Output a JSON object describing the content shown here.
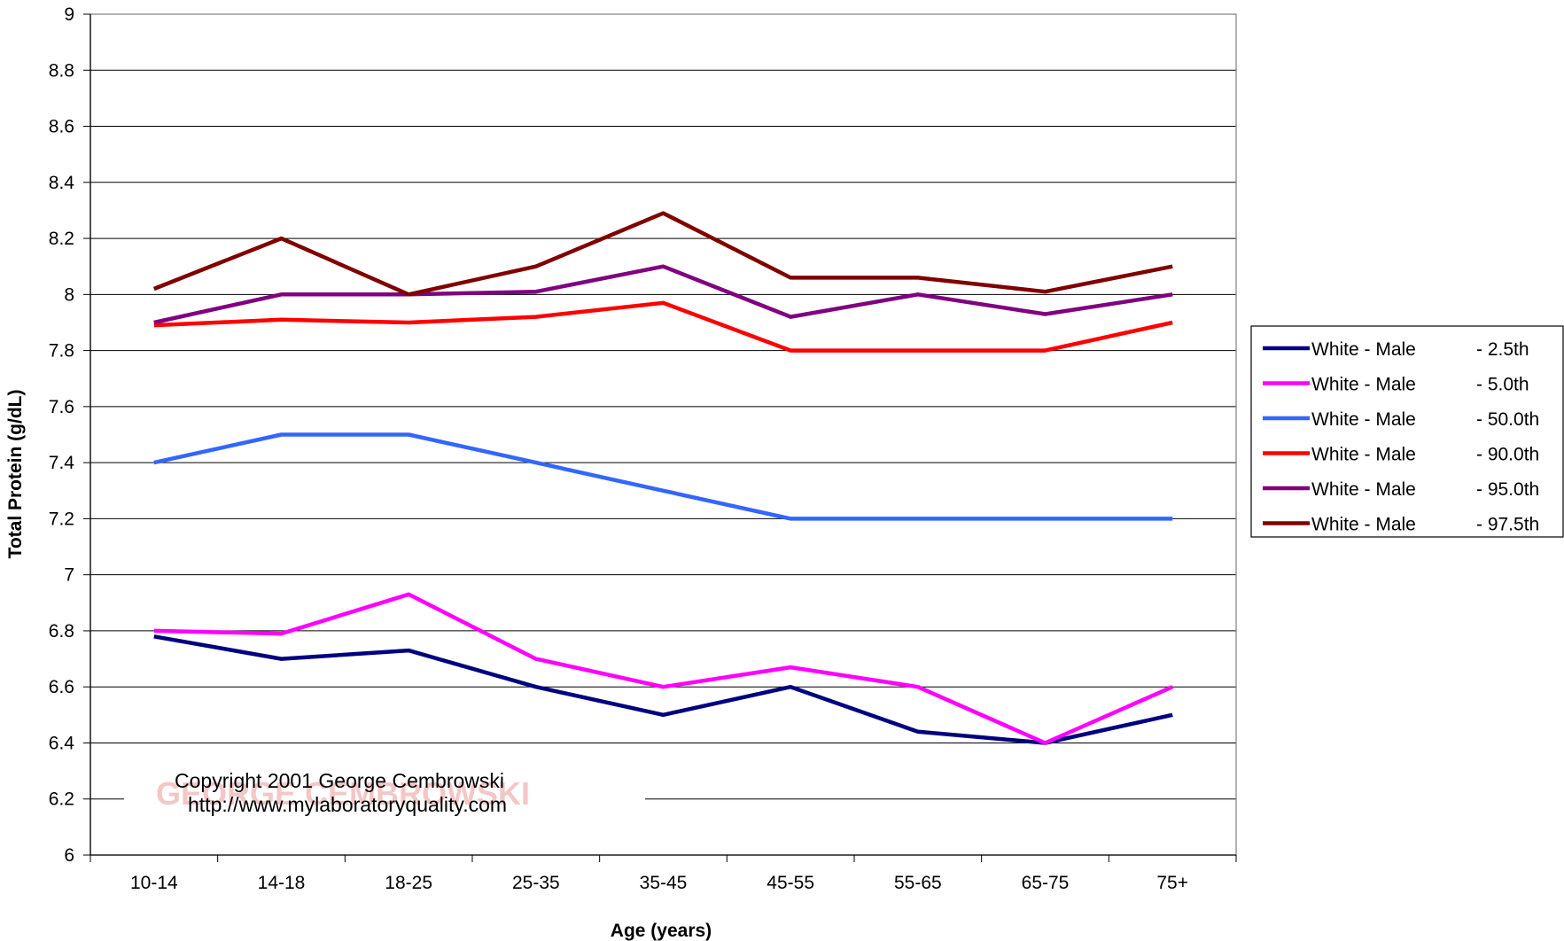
{
  "chart_data": {
    "type": "line",
    "xlabel": "Age (years)",
    "ylabel": "Total Protein (g/dL)",
    "ylim": [
      6,
      9
    ],
    "y_ticks": [
      "6",
      "6.2",
      "6.4",
      "6.6",
      "6.8",
      "7",
      "7.2",
      "7.4",
      "7.6",
      "7.8",
      "8",
      "8.2",
      "8.4",
      "8.6",
      "8.8",
      "9"
    ],
    "categories": [
      "10-14",
      "14-18",
      "18-25",
      "25-35",
      "35-45",
      "45-55",
      "55-65",
      "65-75",
      "75+"
    ],
    "grid": true,
    "legend_position": "right",
    "series": [
      {
        "name": "White - Male",
        "suffix": "- 2.5th",
        "color": "#000080",
        "values": [
          6.78,
          6.7,
          6.73,
          6.6,
          6.5,
          6.6,
          6.44,
          6.4,
          6.5
        ]
      },
      {
        "name": "White - Male",
        "suffix": "- 5.0th",
        "color": "#ff00ff",
        "values": [
          6.8,
          6.79,
          6.93,
          6.7,
          6.6,
          6.67,
          6.6,
          6.4,
          6.6
        ]
      },
      {
        "name": "White - Male",
        "suffix": "- 50.0th",
        "color": "#3366ff",
        "values": [
          7.4,
          7.5,
          7.5,
          7.4,
          7.3,
          7.2,
          7.2,
          7.2,
          7.2
        ]
      },
      {
        "name": "White - Male",
        "suffix": "- 90.0th",
        "color": "#ff0000",
        "values": [
          7.89,
          7.91,
          7.9,
          7.92,
          7.97,
          7.8,
          7.8,
          7.8,
          7.9
        ]
      },
      {
        "name": "White - Male",
        "suffix": "- 95.0th",
        "color": "#800080",
        "values": [
          7.9,
          8.0,
          8.0,
          8.01,
          8.1,
          7.92,
          8.0,
          7.93,
          8.0
        ]
      },
      {
        "name": "White - Male",
        "suffix": "- 97.5th",
        "color": "#800000",
        "values": [
          8.02,
          8.2,
          8.0,
          8.1,
          8.29,
          8.06,
          8.06,
          8.01,
          8.1
        ]
      }
    ],
    "annotation": {
      "line1": "Copyright 2001 George Cembrowski",
      "line2": "http://www.mylaboratoryquality.com",
      "logo_text": "GEORGE CEMBROWSKI"
    }
  }
}
